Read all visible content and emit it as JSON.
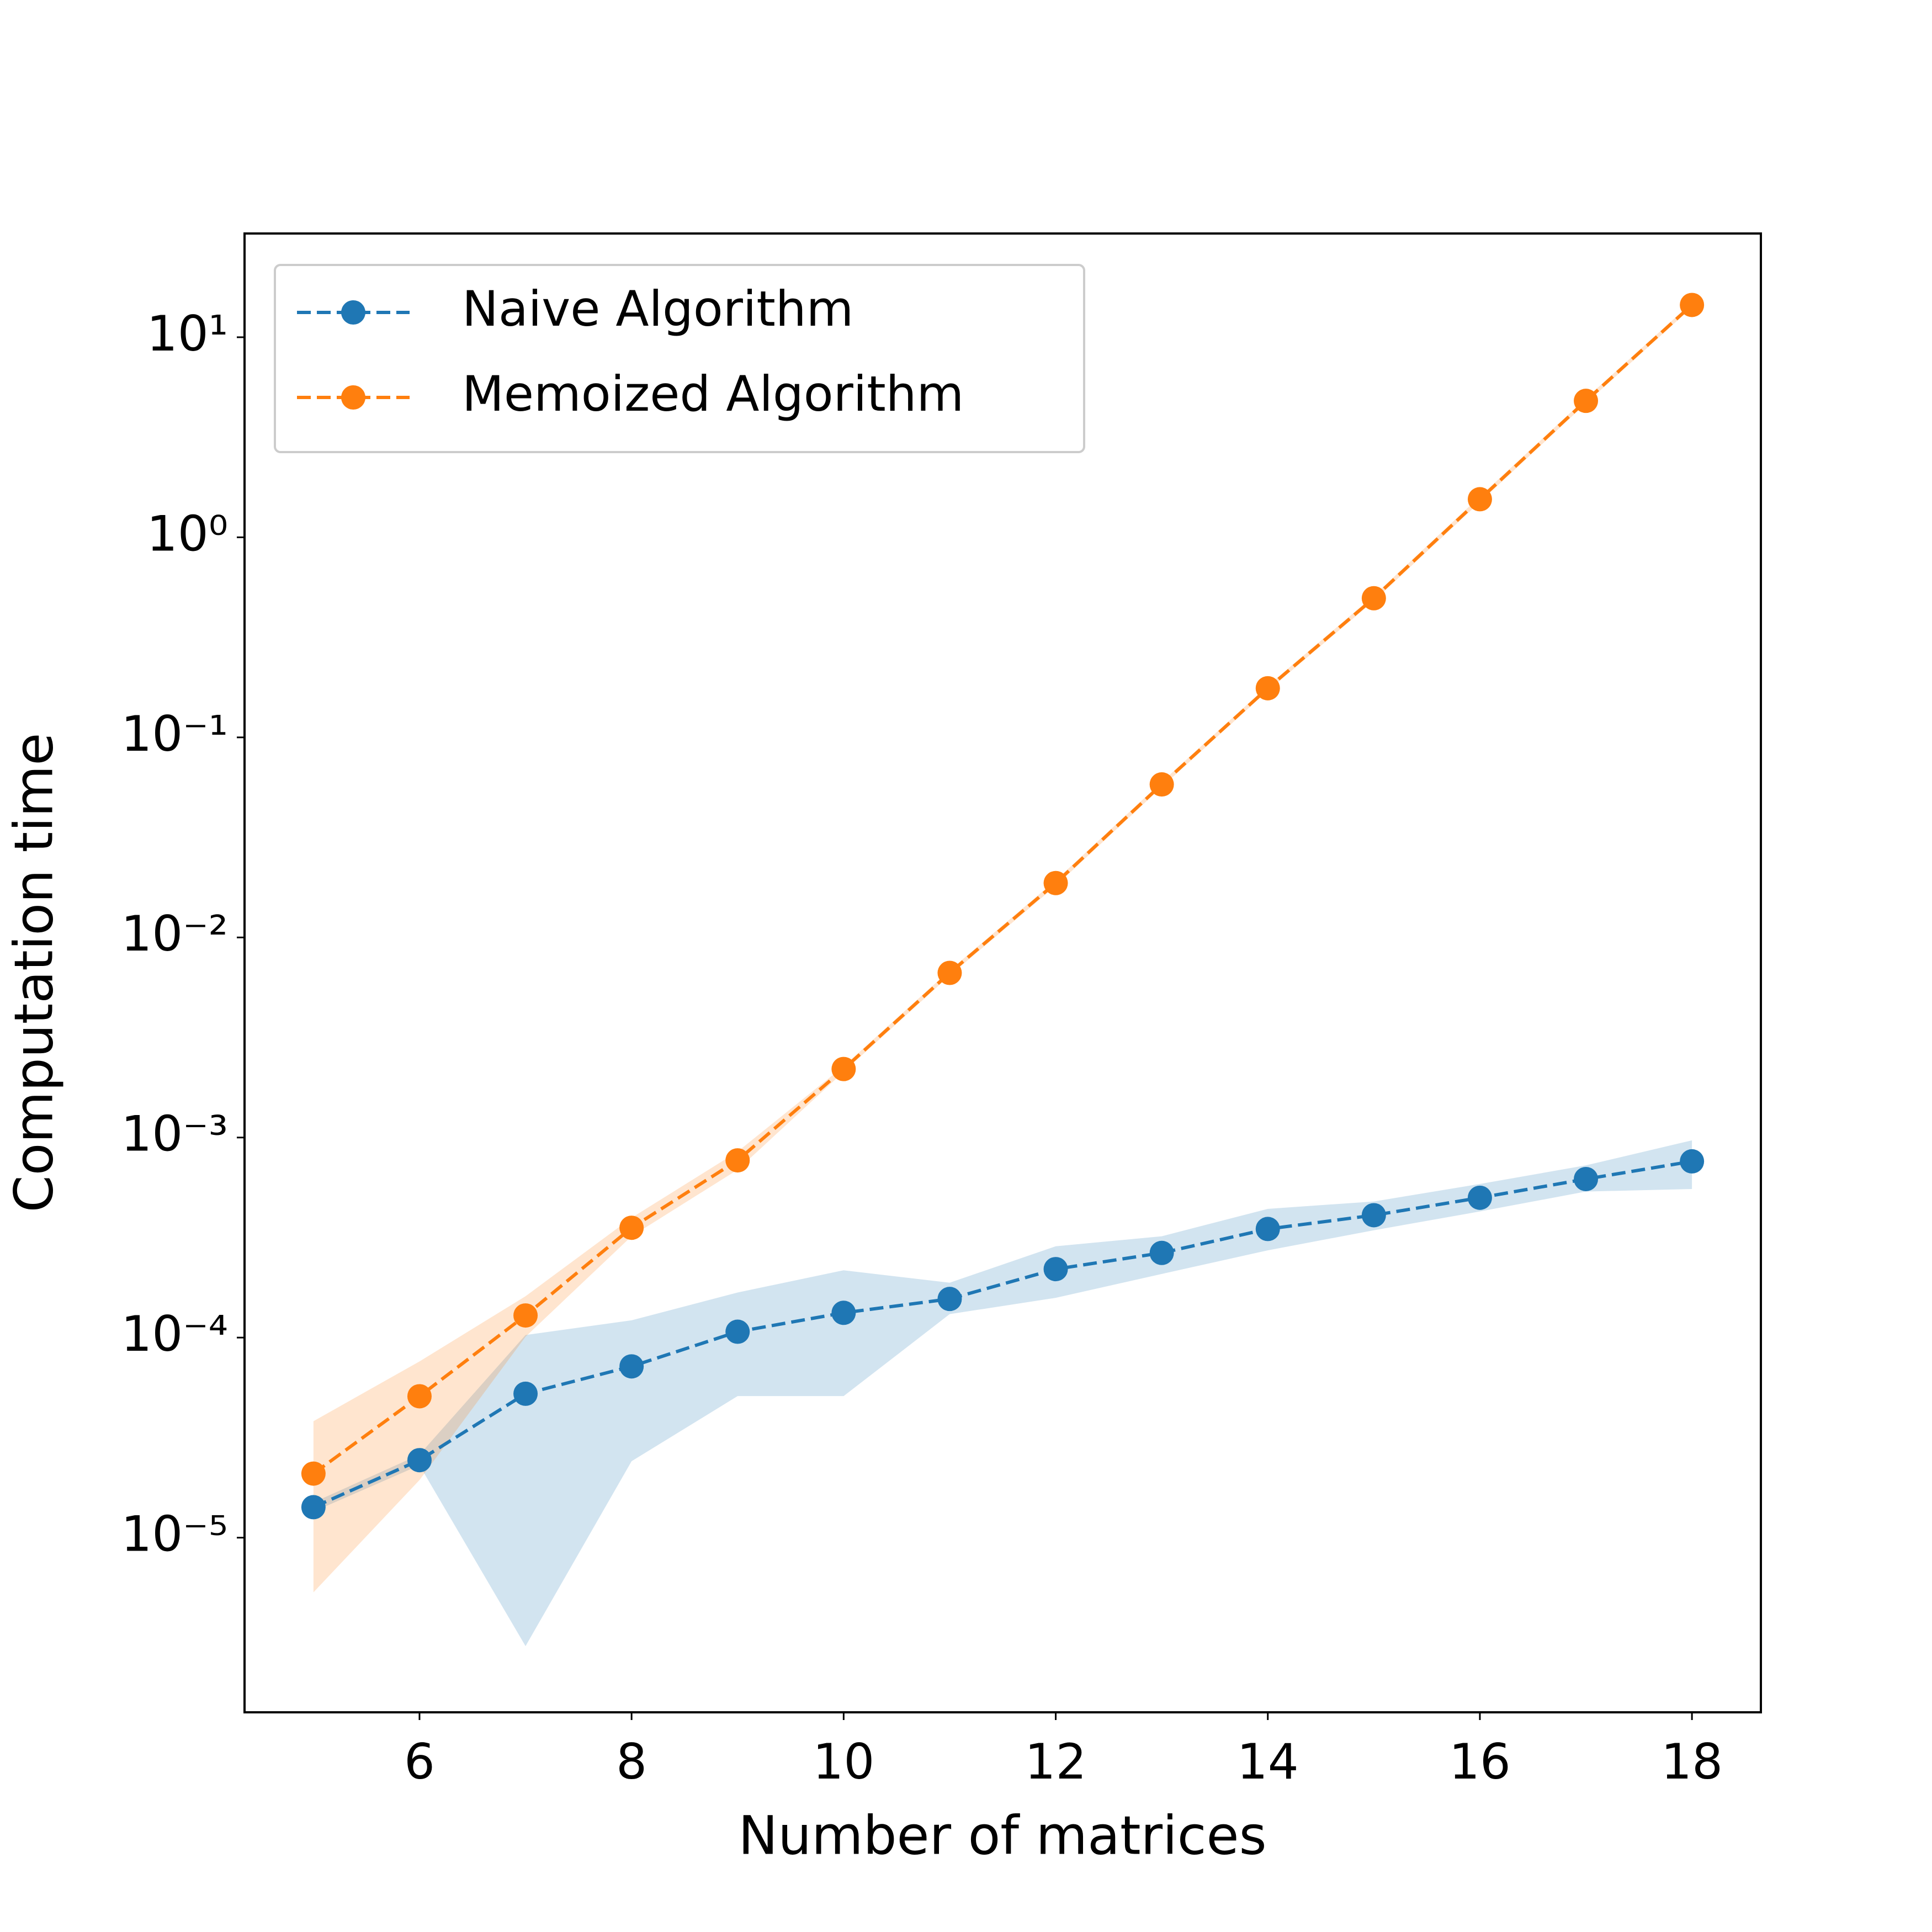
{
  "chart_data": {
    "type": "line",
    "x_label": "Number of matrices",
    "y_label": "Computation time",
    "log_y": true,
    "legend": "upper left",
    "x": [
      5,
      6,
      7,
      8,
      9,
      10,
      11,
      12,
      13,
      14,
      15,
      16,
      17,
      18
    ],
    "series": [
      {
        "name": "Naive Algorithm",
        "color": "#1f77b4",
        "values": [
          1.42e-05,
          2.44e-05,
          5.24e-05,
          7.18e-05,
          0.000107,
          0.000133,
          0.000156,
          0.00022,
          0.000265,
          0.000349,
          0.000409,
          0.0005,
          0.00062,
          0.00076
        ],
        "lower": [
          1.35e-05,
          2.3e-05,
          2.87e-06,
          2.41e-05,
          5.1e-05,
          5.1e-05,
          0.000131,
          0.000158,
          0.000208,
          0.000273,
          0.000344,
          0.000427,
          0.000537,
          0.000553
        ],
        "upper": [
          1.5e-05,
          2.6e-05,
          0.000103,
          0.000122,
          0.000168,
          0.000217,
          0.000188,
          0.000286,
          0.000321,
          0.00044,
          0.000479,
          0.000586,
          0.000726,
          0.000968
        ]
      },
      {
        "name": "Memoized Algorithm",
        "color": "#ff7f0e",
        "values": [
          2.09e-05,
          5.09e-05,
          0.000129,
          0.000354,
          0.000769,
          0.0022,
          0.00665,
          0.0187,
          0.0582,
          0.176,
          0.496,
          1.55,
          4.81,
          14.5
        ],
        "lower": [
          5.33e-06,
          1.94e-05,
          0.000101,
          0.000321,
          0.00069,
          0.00213,
          0.00645,
          0.0181,
          0.0565,
          0.171,
          0.481,
          1.5,
          4.67,
          14.1
        ],
        "upper": [
          3.82e-05,
          7.6e-05,
          0.000161,
          0.000397,
          0.00085,
          0.00227,
          0.00685,
          0.0193,
          0.0599,
          0.181,
          0.511,
          1.6,
          4.95,
          14.9
        ]
      }
    ],
    "xlim": [
      4.35,
      18.65
    ],
    "ylim": [
      1.34e-06,
      33
    ],
    "xticks": [
      6,
      8,
      10,
      12,
      14,
      16,
      18
    ],
    "yticks": [
      {
        "value": 1e-05,
        "label": "10⁻⁵"
      },
      {
        "value": 0.0001,
        "label": "10⁻⁴"
      },
      {
        "value": 0.001,
        "label": "10⁻³"
      },
      {
        "value": 0.01,
        "label": "10⁻²"
      },
      {
        "value": 0.1,
        "label": "10⁻¹"
      },
      {
        "value": 1,
        "label": "10⁰"
      },
      {
        "value": 10,
        "label": "10¹"
      }
    ]
  }
}
